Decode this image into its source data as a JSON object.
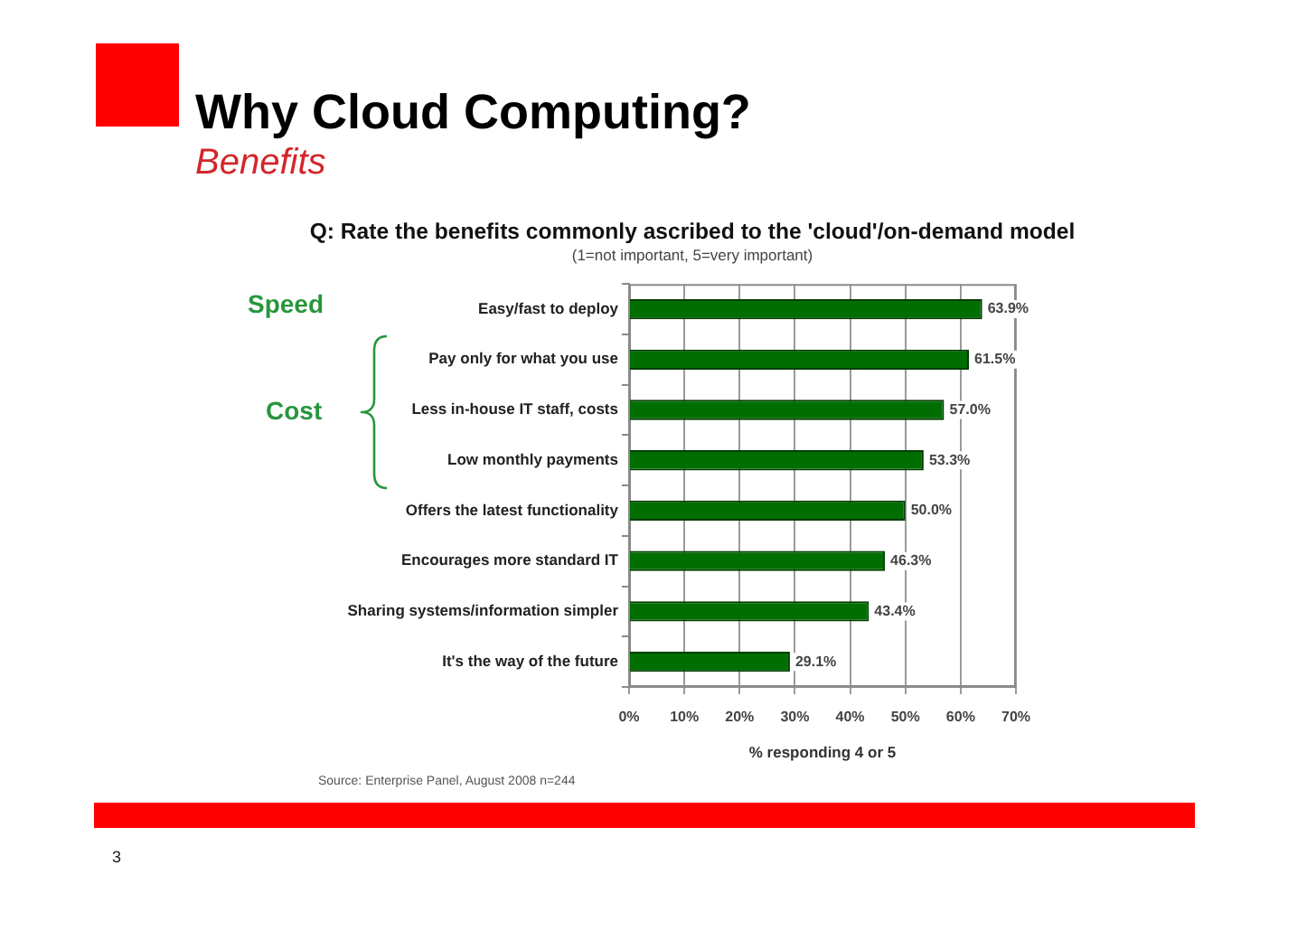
{
  "chart_data": {
    "type": "bar",
    "orientation": "horizontal",
    "title": "Why Cloud Computing?",
    "subtitle": "Benefits",
    "xlabel": "% responding 4 or 5",
    "categories": [
      "Easy/fast to deploy",
      "Pay only for what you use",
      "Less in-house IT staff, costs",
      "Low monthly payments",
      "Offers the latest functionality",
      "Encourages more standard IT",
      "Sharing systems/information simpler",
      "It's the way of the future"
    ],
    "values": [
      63.9,
      61.5,
      57.0,
      53.3,
      50.0,
      46.3,
      43.4,
      29.1
    ],
    "value_labels": [
      "63.9%",
      "61.5%",
      "57.0%",
      "53.3%",
      "50.0%",
      "46.3%",
      "43.4%",
      "29.1%"
    ],
    "color": "#006e00",
    "xlim": [
      0,
      70
    ],
    "xticks": [
      {
        "value": 0,
        "label": "0%"
      },
      {
        "value": 10,
        "label": "10%"
      },
      {
        "value": 20,
        "label": "20%"
      },
      {
        "value": 30,
        "label": "30%"
      },
      {
        "value": 40,
        "label": "40%"
      },
      {
        "value": 50,
        "label": "50%"
      },
      {
        "value": 60,
        "label": "60%"
      },
      {
        "value": 70,
        "label": "70%"
      }
    ],
    "grid": "x",
    "annotations": [
      "Q: Rate the benefits commonly ascribed to the 'cloud'/on-demand model",
      "(1=not important, 5=very important)",
      "Speed",
      "Cost",
      "Source: Enterprise Panel, August 2008  n=244",
      "3"
    ]
  }
}
